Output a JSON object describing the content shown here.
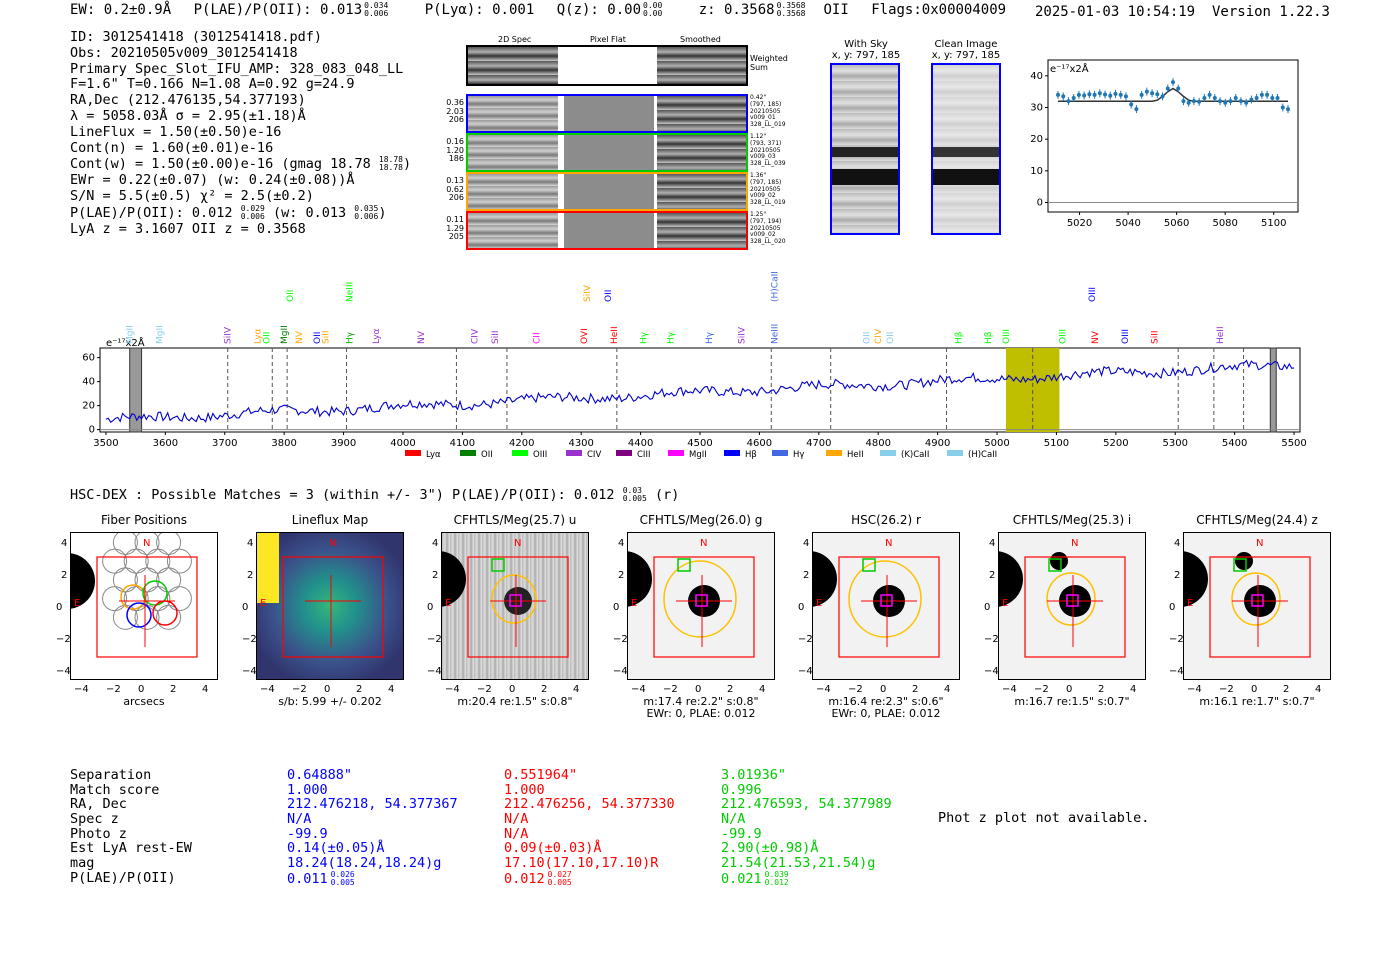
{
  "header": {
    "ew": "EW: 0.2±0.9Å",
    "plae_label": "P(LAE)/P(OII): 0.013",
    "plae_hi": "0.034",
    "plae_lo": "0.006",
    "plya": "P(Lyα): 0.001",
    "qz_label": "Q(z): 0.00",
    "qz_hi": "0.00",
    "qz_lo": "0.00",
    "z_label": "z: 0.3568",
    "z_hi": "0.3568",
    "z_lo": "0.3568",
    "z_line": "OII",
    "flags": "Flags:0x00004009",
    "datetime": "2025-01-03 10:54:19",
    "version": "Version 1.22.3"
  },
  "info": {
    "id": "ID: 3012541418 (3012541418.pdf)",
    "obs": "Obs: 20210505v009_3012541418",
    "slot": "Primary Spec_Slot_IFU_AMP: 328_083_048_LL",
    "params": "F=1.6\"  T=0.166  N=1.08  A=0.92  g=24.9",
    "radec": "RA,Dec (212.476135,54.377193)",
    "lambda": "λ = 5058.03Å  σ = 2.95(±1.18)Å",
    "lineflux": "LineFlux = 1.50(±0.50)e-16",
    "contn": "Cont(n) = 1.60(±0.01)e-16",
    "contw": "Cont(w) = 1.50(±0.00)e-16 (gmag 18.78",
    "contw_hi": "18.78",
    "contw_lo": "18.78",
    "ewr": "EWr = 0.22(±0.07) (w: 0.24(±0.08))Å",
    "sn": "S/N = 5.5(±0.5)  χ² = 2.5(±0.2)",
    "plae": "P(LAE)/P(OII): 0.012",
    "plae_hi": "0.029",
    "plae_lo": "0.006",
    "plae_w": "(w: 0.013",
    "plae_w_hi": "0.035",
    "plae_w_lo": "0.006",
    "lyaz": "LyA z = 3.1607  OII z = 0.3568"
  },
  "strips": {
    "headers": [
      "2D Spec",
      "Pixel Flat",
      "Smoothed"
    ],
    "weighted": "Weighted\nSum",
    "rows": [
      {
        "left": [
          "0.36",
          "2.03",
          "206"
        ],
        "meta": [
          "0.42\"",
          "(797, 185)",
          "20210505",
          "v009_01",
          "328_LL_019"
        ],
        "color": "#0000ff"
      },
      {
        "left": [
          "0.16",
          "1.20",
          "186"
        ],
        "meta": [
          "1.12\"",
          "(793, 371)",
          "20210505",
          "v009_03",
          "328_LL_039"
        ],
        "color": "#00cc00"
      },
      {
        "left": [
          "0.13",
          "0.62",
          "206"
        ],
        "meta": [
          "1.36\"",
          "(797, 185)",
          "20210505",
          "v009_02",
          "328_LL_019"
        ],
        "color": "#ffa500"
      },
      {
        "left": [
          "0.11",
          "1.29",
          "205"
        ],
        "meta": [
          "1.25\"",
          "(797, 194)",
          "20210505",
          "v009_02",
          "328_LL_020"
        ],
        "color": "#ff0000"
      }
    ]
  },
  "sky": {
    "with_sky": "With Sky",
    "with_sky_xy": "x, y: 797, 185",
    "clean": "Clean Image",
    "clean_xy": "x, y: 797, 185"
  },
  "zoom_chart": {
    "ylabel": "e⁻¹⁷x2Å",
    "xticks": [
      "5020",
      "5040",
      "5060",
      "5080",
      "5100"
    ],
    "yticks": [
      "0",
      "10",
      "20",
      "30",
      "40"
    ],
    "values": [
      34,
      33.5,
      32,
      33,
      34,
      33.8,
      34.2,
      34,
      34.5,
      34.1,
      33.7,
      34.3,
      34,
      33.5,
      31,
      29.5,
      34,
      35,
      34.5,
      34.2,
      33.5,
      36,
      38,
      36,
      32,
      31.5,
      32,
      31.8,
      33,
      34,
      33,
      32,
      31.5,
      32,
      33,
      32,
      31.5,
      32.5,
      33,
      34,
      34,
      33,
      33,
      30,
      29.5
    ],
    "fit": [
      32,
      32,
      32,
      32,
      32,
      32,
      32,
      32,
      32,
      32,
      32,
      32,
      32,
      32,
      32,
      32,
      32,
      32,
      32,
      32.3,
      33.5,
      35,
      36,
      35,
      33.5,
      32.3,
      32,
      32,
      32,
      32,
      32,
      32,
      32,
      32,
      32,
      32,
      32,
      32,
      32,
      32,
      32,
      32,
      32,
      32,
      32
    ]
  },
  "spectrum": {
    "ylabel": "e⁻¹⁷x2Å",
    "xticks": [
      "3500",
      "3600",
      "3700",
      "3800",
      "3900",
      "4000",
      "4100",
      "4200",
      "4300",
      "4400",
      "4500",
      "4600",
      "4700",
      "4800",
      "4900",
      "5000",
      "5100",
      "5200",
      "5300",
      "5400",
      "5500"
    ],
    "yticks": [
      "0",
      "20",
      "40",
      "60"
    ],
    "legend": [
      {
        "label": "Lyα",
        "color": "#ff0000"
      },
      {
        "label": "OII",
        "color": "#008000"
      },
      {
        "label": "OIII",
        "color": "#00ff00"
      },
      {
        "label": "CIV",
        "color": "#9932cc"
      },
      {
        "label": "CIII",
        "color": "#800080"
      },
      {
        "label": "MgII",
        "color": "#ff00ff"
      },
      {
        "label": "Hβ",
        "color": "#0000ff"
      },
      {
        "label": "Hγ",
        "color": "#4169e1"
      },
      {
        "label": "HeII",
        "color": "#ffa500"
      },
      {
        "label": "(K)CaII",
        "color": "#87ceeb"
      },
      {
        "label": "(H)CaII",
        "color": "#87ceeb"
      }
    ],
    "lines_low": [
      {
        "t": "MgII",
        "w": 3540,
        "c": "#87ceeb"
      },
      {
        "t": "MgII",
        "w": 3590,
        "c": "#87ceeb"
      },
      {
        "t": "SiIV",
        "w": 3705,
        "c": "#9932cc"
      },
      {
        "t": "Lyα",
        "w": 3755,
        "c": "#ffa500"
      },
      {
        "t": "OII",
        "w": 3770,
        "c": "#00ff00"
      },
      {
        "t": "MgII",
        "w": 3800,
        "c": "#008000"
      },
      {
        "t": "NV",
        "w": 3825,
        "c": "#ffa500"
      },
      {
        "t": "OII",
        "w": 3855,
        "c": "#0000ff"
      },
      {
        "t": "SiII",
        "w": 3870,
        "c": "#ffa500"
      },
      {
        "t": "Hγ",
        "w": 3910,
        "c": "#00aa00"
      },
      {
        "t": "Lyα",
        "w": 3955,
        "c": "#9932cc"
      },
      {
        "t": "NV",
        "w": 4030,
        "c": "#9932cc"
      },
      {
        "t": "CIV",
        "w": 4120,
        "c": "#9932cc"
      },
      {
        "t": "SiII",
        "w": 4155,
        "c": "#9932cc"
      },
      {
        "t": "CII",
        "w": 4225,
        "c": "#ff00ff"
      },
      {
        "t": "OVI",
        "w": 4305,
        "c": "#ff0000"
      },
      {
        "t": "HeII",
        "w": 4355,
        "c": "#ff0000"
      },
      {
        "t": "Hγ",
        "w": 4405,
        "c": "#00ff00"
      },
      {
        "t": "Hγ",
        "w": 4450,
        "c": "#00ff00"
      },
      {
        "t": "Hγ",
        "w": 4515,
        "c": "#4169e1"
      },
      {
        "t": "SiIV",
        "w": 4570,
        "c": "#9932cc"
      },
      {
        "t": "NeIII",
        "w": 4625,
        "c": "#4169e1"
      },
      {
        "t": "OII",
        "w": 4780,
        "c": "#87ceeb"
      },
      {
        "t": "CIV",
        "w": 4800,
        "c": "#ffa500"
      },
      {
        "t": "OII",
        "w": 4820,
        "c": "#87ceeb"
      },
      {
        "t": "Hβ",
        "w": 4935,
        "c": "#00ff00"
      },
      {
        "t": "Hβ",
        "w": 4985,
        "c": "#00ff00"
      },
      {
        "t": "OIII",
        "w": 5015,
        "c": "#00ff00"
      },
      {
        "t": "OIII",
        "w": 5110,
        "c": "#00ff00"
      },
      {
        "t": "NV",
        "w": 5165,
        "c": "#ff0000"
      },
      {
        "t": "OIII",
        "w": 5215,
        "c": "#0000ff"
      },
      {
        "t": "SiII",
        "w": 5265,
        "c": "#ff0000"
      },
      {
        "t": "HeII",
        "w": 5375,
        "c": "#9932cc"
      }
    ],
    "lines_high": [
      {
        "t": "OII",
        "w": 3810,
        "c": "#00ff00"
      },
      {
        "t": "NeIII",
        "w": 3910,
        "c": "#00ff00"
      },
      {
        "t": "SiIV",
        "w": 4310,
        "c": "#ffa500"
      },
      {
        "t": "OII",
        "w": 4345,
        "c": "#0000ff"
      },
      {
        "t": "(H)CaII",
        "w": 4625,
        "c": "#4169e1"
      },
      {
        "t": "OIII",
        "w": 5160,
        "c": "#0000ff"
      }
    ]
  },
  "hsc": {
    "line": "HSC-DEX : Possible Matches = 3 (within +/- 3\")  P(LAE)/P(OII): 0.012",
    "hi": "0.03",
    "lo": "0.005",
    "band": "(r)"
  },
  "cutouts": [
    {
      "title": "Fiber Positions",
      "sub": "arcsecs",
      "sub2": ""
    },
    {
      "title": "Lineflux Map",
      "sub": "s/b: 5.99 +/- 0.202",
      "sub2": ""
    },
    {
      "title": "CFHTLS/Meg(25.7) u",
      "sub": "m:20.4  re:1.5\"  s:0.8\"",
      "sub2": ""
    },
    {
      "title": "CFHTLS/Meg(26.0) g",
      "sub": "m:17.4  re:2.2\"  s:0.8\"",
      "sub2": "EWr: 0, PLAE: 0.012"
    },
    {
      "title": "HSC(26.2) r",
      "sub": "m:16.4  re:2.3\"  s:0.6\"",
      "sub2": "EWr: 0, PLAE: 0.012"
    },
    {
      "title": "CFHTLS/Meg(25.3) i",
      "sub": "m:16.7  re:1.5\"  s:0.7\"",
      "sub2": ""
    },
    {
      "title": "CFHTLS/Meg(24.4) z",
      "sub": "m:16.1  re:1.7\"  s:0.7\"",
      "sub2": ""
    }
  ],
  "cut_axes": {
    "ticks": [
      "−4",
      "−2",
      "0",
      "2",
      "4"
    ],
    "n": "N",
    "e": "E"
  },
  "matches": {
    "labels": [
      "Separation",
      "Match score",
      "RA, Dec",
      "Spec z",
      "Photo z",
      "Est LyA rest-EW",
      "mag",
      "P(LAE)/P(OII)"
    ],
    "cols": [
      {
        "color": "#0000ff",
        "vals": [
          "0.64888\"",
          "1.000",
          "212.476218, 54.377367",
          "N/A",
          "-99.9",
          "0.14(±0.05)Å",
          "18.24(18.24,18.24)g",
          "0.011"
        ],
        "hi": "0.026",
        "lo": "0.005"
      },
      {
        "color": "#ff0000",
        "vals": [
          "0.551964\"",
          "1.000",
          "212.476256, 54.377330",
          "N/A",
          "N/A",
          "0.09(±0.03)Å",
          "17.10(17.10,17.10)R",
          "0.012"
        ],
        "hi": "0.027",
        "lo": "0.005"
      },
      {
        "color": "#00cc00",
        "vals": [
          "3.01936\"",
          "0.996",
          "212.476593, 54.377989",
          "N/A",
          "-99.9",
          "2.90(±0.98)Å",
          "21.54(21.53,21.54)g",
          "0.021"
        ],
        "hi": "0.039",
        "lo": "0.012"
      }
    ],
    "photz": "Phot z plot not available."
  }
}
